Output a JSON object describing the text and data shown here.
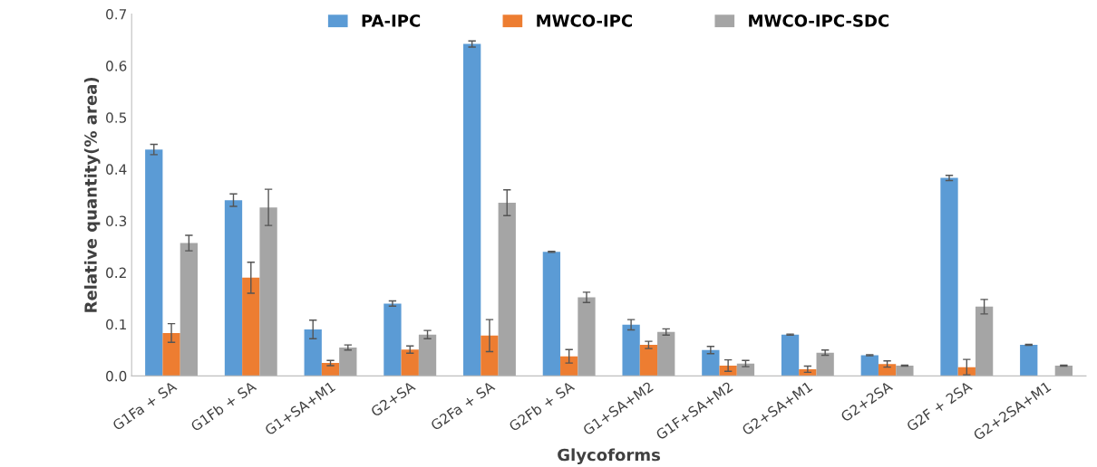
{
  "chart_data": {
    "type": "bar",
    "xlabel": "Glycoforms",
    "ylabel": "Relative quantity(% area)",
    "categories": [
      "G1Fa + SA",
      "G1Fb + SA",
      "G1+SA+M1",
      "G2+SA",
      "G2Fa + SA",
      "G2Fb + SA",
      "G1+SA+M2",
      "G1F+SA+M2",
      "G2+SA+M1",
      "G2+2SA",
      "G2F + 2SA",
      "G2+2SA+M1"
    ],
    "series": [
      {
        "name": "PA-IPC",
        "color": "#5b9bd5",
        "values": [
          0.438,
          0.34,
          0.09,
          0.14,
          0.642,
          0.24,
          0.099,
          0.05,
          0.08,
          0.04,
          0.383,
          0.06
        ],
        "errors": [
          0.01,
          0.012,
          0.018,
          0.005,
          0.006,
          0.001,
          0.01,
          0.007,
          0.001,
          0.001,
          0.005,
          0.001
        ]
      },
      {
        "name": "MWCO-IPC",
        "color": "#ed7d31",
        "values": [
          0.083,
          0.19,
          0.025,
          0.051,
          0.078,
          0.038,
          0.06,
          0.02,
          0.013,
          0.023,
          0.017,
          null
        ],
        "errors": [
          0.018,
          0.03,
          0.005,
          0.007,
          0.031,
          0.013,
          0.007,
          0.011,
          0.006,
          0.006,
          0.015,
          null
        ]
      },
      {
        "name": "MWCO-IPC-SDC",
        "color": "#a5a5a5",
        "values": [
          0.257,
          0.326,
          0.055,
          0.08,
          0.335,
          0.152,
          0.085,
          0.024,
          0.045,
          0.02,
          0.134,
          0.02
        ],
        "errors": [
          0.015,
          0.035,
          0.005,
          0.008,
          0.025,
          0.01,
          0.006,
          0.006,
          0.005,
          0.001,
          0.014,
          0.001
        ]
      }
    ],
    "ylim": [
      0,
      0.7
    ],
    "yticks": [
      {
        "value": 0,
        "label": "0.0"
      },
      0.1,
      0.2,
      0.3,
      0.4,
      0.5,
      0.6,
      0.7
    ],
    "grid": false,
    "legend": "top"
  }
}
